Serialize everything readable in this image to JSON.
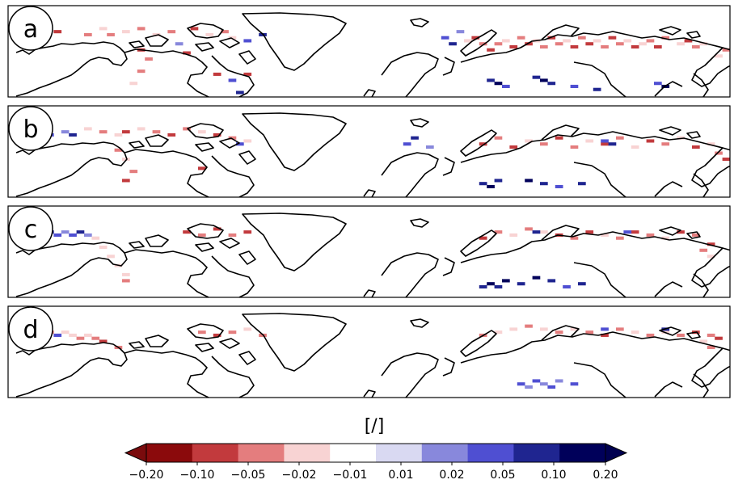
{
  "chart_data": {
    "type": "heatmap",
    "description_of_content": "",
    "panels": [
      {
        "label": "a",
        "cells": [
          [
            2,
            7,
            2
          ],
          [
            6,
            8,
            1
          ],
          [
            10,
            9,
            2
          ],
          [
            12,
            7,
            3
          ],
          [
            13,
            9,
            2
          ],
          [
            15,
            8,
            3
          ],
          [
            17,
            7,
            2
          ],
          [
            19,
            9,
            3
          ],
          [
            21,
            8,
            2
          ],
          [
            24,
            7,
            1
          ],
          [
            26,
            9,
            3
          ],
          [
            28,
            8,
            2
          ],
          [
            29,
            10,
            3
          ],
          [
            31,
            11,
            7
          ],
          [
            33,
            9,
            8
          ],
          [
            17,
            14,
            1
          ],
          [
            18,
            17,
            2
          ],
          [
            17,
            21,
            2
          ],
          [
            16,
            25,
            3
          ],
          [
            27,
            22,
            1
          ],
          [
            29,
            24,
            7
          ],
          [
            30,
            28,
            8
          ],
          [
            31,
            22,
            1
          ],
          [
            22,
            12,
            6
          ],
          [
            23,
            15,
            1
          ],
          [
            60,
            11,
            3
          ],
          [
            61,
            10,
            1
          ],
          [
            62,
            12,
            2
          ],
          [
            63,
            14,
            1
          ],
          [
            64,
            12,
            2
          ],
          [
            65,
            11,
            3
          ],
          [
            66,
            13,
            1
          ],
          [
            67,
            10,
            2
          ],
          [
            68,
            12,
            1
          ],
          [
            69,
            11,
            3
          ],
          [
            70,
            13,
            2
          ],
          [
            71,
            10,
            1
          ],
          [
            72,
            12,
            2
          ],
          [
            73,
            11,
            3
          ],
          [
            74,
            13,
            1
          ],
          [
            75,
            10,
            2
          ],
          [
            76,
            12,
            1
          ],
          [
            77,
            11,
            3
          ],
          [
            78,
            13,
            2
          ],
          [
            79,
            10,
            1
          ],
          [
            80,
            12,
            2
          ],
          [
            81,
            11,
            3
          ],
          [
            82,
            13,
            1
          ],
          [
            83,
            12,
            3
          ],
          [
            84,
            11,
            2
          ],
          [
            85,
            13,
            1
          ],
          [
            86,
            10,
            2
          ],
          [
            88,
            12,
            3
          ],
          [
            89,
            11,
            1
          ],
          [
            90,
            13,
            2
          ],
          [
            91,
            12,
            3
          ],
          [
            57,
            10,
            7
          ],
          [
            58,
            12,
            8
          ],
          [
            59,
            8,
            6
          ],
          [
            63,
            24,
            8
          ],
          [
            64,
            25,
            9
          ],
          [
            65,
            26,
            7
          ],
          [
            69,
            23,
            8
          ],
          [
            70,
            24,
            9
          ],
          [
            71,
            25,
            8
          ],
          [
            74,
            26,
            7
          ],
          [
            77,
            27,
            8
          ],
          [
            85,
            25,
            7
          ],
          [
            86,
            26,
            9
          ],
          [
            93,
            16,
            3
          ],
          [
            94,
            14,
            2
          ],
          [
            95,
            17,
            1
          ]
        ]
      },
      {
        "label": "b",
        "cells": [
          [
            5,
            9,
            7
          ],
          [
            7,
            8,
            6
          ],
          [
            8,
            9,
            8
          ],
          [
            10,
            7,
            3
          ],
          [
            12,
            8,
            2
          ],
          [
            14,
            9,
            3
          ],
          [
            15,
            8,
            1
          ],
          [
            17,
            7,
            3
          ],
          [
            19,
            8,
            2
          ],
          [
            21,
            9,
            1
          ],
          [
            23,
            7,
            2
          ],
          [
            25,
            8,
            3
          ],
          [
            27,
            9,
            1
          ],
          [
            29,
            10,
            2
          ],
          [
            30,
            12,
            7
          ],
          [
            31,
            11,
            3
          ],
          [
            14,
            14,
            2
          ],
          [
            15,
            17,
            3
          ],
          [
            16,
            21,
            2
          ],
          [
            15,
            24,
            1
          ],
          [
            25,
            20,
            1
          ],
          [
            52,
            12,
            7
          ],
          [
            53,
            10,
            8
          ],
          [
            55,
            13,
            6
          ],
          [
            62,
            12,
            1
          ],
          [
            64,
            10,
            2
          ],
          [
            66,
            13,
            1
          ],
          [
            68,
            11,
            3
          ],
          [
            70,
            12,
            2
          ],
          [
            72,
            10,
            1
          ],
          [
            74,
            13,
            2
          ],
          [
            76,
            11,
            3
          ],
          [
            78,
            12,
            1
          ],
          [
            80,
            10,
            2
          ],
          [
            82,
            13,
            3
          ],
          [
            84,
            11,
            1
          ],
          [
            86,
            12,
            2
          ],
          [
            88,
            10,
            3
          ],
          [
            90,
            13,
            1
          ],
          [
            92,
            12,
            3
          ],
          [
            93,
            15,
            2
          ],
          [
            94,
            17,
            1
          ],
          [
            78,
            11,
            7
          ],
          [
            79,
            12,
            8
          ],
          [
            62,
            25,
            8
          ],
          [
            63,
            26,
            9
          ],
          [
            64,
            24,
            8
          ],
          [
            68,
            24,
            9
          ],
          [
            70,
            25,
            8
          ],
          [
            72,
            26,
            7
          ],
          [
            75,
            25,
            8
          ]
        ]
      },
      {
        "label": "c",
        "cells": [
          [
            4,
            9,
            7
          ],
          [
            5,
            8,
            8
          ],
          [
            6,
            9,
            7
          ],
          [
            7,
            8,
            6
          ],
          [
            8,
            9,
            7
          ],
          [
            9,
            8,
            8
          ],
          [
            10,
            9,
            6
          ],
          [
            11,
            10,
            3
          ],
          [
            12,
            13,
            3
          ],
          [
            13,
            16,
            3
          ],
          [
            14,
            19,
            3
          ],
          [
            15,
            22,
            3
          ],
          [
            15,
            24,
            2
          ],
          [
            23,
            8,
            1
          ],
          [
            25,
            9,
            2
          ],
          [
            27,
            7,
            1
          ],
          [
            29,
            9,
            2
          ],
          [
            31,
            8,
            1
          ],
          [
            62,
            10,
            1
          ],
          [
            64,
            8,
            2
          ],
          [
            66,
            9,
            3
          ],
          [
            68,
            7,
            2
          ],
          [
            70,
            8,
            3
          ],
          [
            72,
            9,
            1
          ],
          [
            74,
            10,
            2
          ],
          [
            76,
            8,
            1
          ],
          [
            78,
            9,
            3
          ],
          [
            80,
            10,
            2
          ],
          [
            82,
            8,
            1
          ],
          [
            84,
            9,
            2
          ],
          [
            86,
            10,
            3
          ],
          [
            88,
            8,
            1
          ],
          [
            90,
            9,
            2
          ],
          [
            92,
            12,
            1
          ],
          [
            91,
            14,
            2
          ],
          [
            92,
            16,
            3
          ],
          [
            69,
            8,
            8
          ],
          [
            81,
            8,
            7
          ],
          [
            62,
            26,
            8
          ],
          [
            63,
            25,
            9
          ],
          [
            64,
            26,
            8
          ],
          [
            65,
            24,
            9
          ],
          [
            67,
            25,
            8
          ],
          [
            69,
            23,
            9
          ],
          [
            71,
            24,
            8
          ],
          [
            73,
            26,
            7
          ],
          [
            75,
            25,
            8
          ]
        ]
      },
      {
        "label": "d",
        "cells": [
          [
            5,
            8,
            2
          ],
          [
            6,
            9,
            7
          ],
          [
            7,
            8,
            3
          ],
          [
            8,
            9,
            3
          ],
          [
            9,
            10,
            2
          ],
          [
            10,
            9,
            3
          ],
          [
            11,
            10,
            2
          ],
          [
            12,
            11,
            1
          ],
          [
            14,
            13,
            2
          ],
          [
            25,
            8,
            2
          ],
          [
            27,
            9,
            1
          ],
          [
            29,
            8,
            2
          ],
          [
            31,
            7,
            3
          ],
          [
            33,
            9,
            2
          ],
          [
            62,
            9,
            2
          ],
          [
            64,
            8,
            3
          ],
          [
            66,
            7,
            3
          ],
          [
            68,
            6,
            2
          ],
          [
            70,
            7,
            3
          ],
          [
            72,
            8,
            2
          ],
          [
            74,
            7,
            3
          ],
          [
            76,
            8,
            2
          ],
          [
            78,
            9,
            1
          ],
          [
            80,
            7,
            2
          ],
          [
            82,
            8,
            3
          ],
          [
            84,
            9,
            2
          ],
          [
            86,
            8,
            3
          ],
          [
            88,
            9,
            2
          ],
          [
            90,
            8,
            1
          ],
          [
            92,
            9,
            2
          ],
          [
            93,
            10,
            1
          ],
          [
            78,
            7,
            7
          ],
          [
            86,
            7,
            8
          ],
          [
            91,
            11,
            3
          ],
          [
            92,
            13,
            2
          ],
          [
            67,
            25,
            7
          ],
          [
            68,
            26,
            6
          ],
          [
            69,
            24,
            7
          ],
          [
            70,
            25,
            6
          ],
          [
            71,
            26,
            7
          ],
          [
            72,
            24,
            6
          ],
          [
            74,
            25,
            7
          ]
        ]
      }
    ],
    "grid": {
      "cols": 95,
      "rows": 30
    },
    "colorbar": {
      "label": "[/]",
      "ticks": [
        "−0.20",
        "−0.10",
        "−0.05",
        "−0.02",
        "−0.01",
        "0.01",
        "0.02",
        "0.05",
        "0.10",
        "0.20"
      ],
      "colors": [
        "#8b0a0c",
        "#c23a3d",
        "#e47d7e",
        "#f8d3d3",
        "#ffffff",
        "#d9d9f2",
        "#8888dc",
        "#4f4fd2",
        "#1f2590",
        "#00005a"
      ],
      "under_color": "#7a0b0d",
      "over_color": "#000050"
    }
  }
}
